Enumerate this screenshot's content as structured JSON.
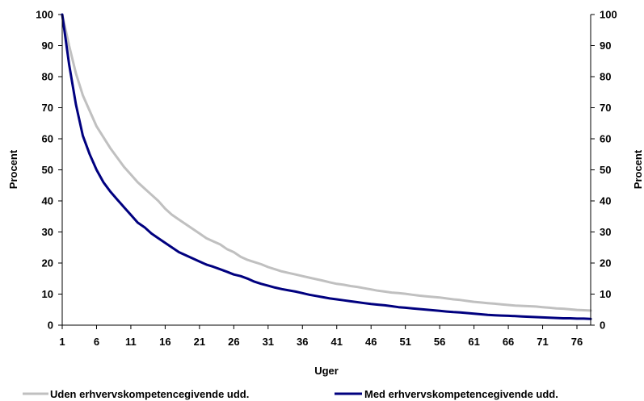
{
  "chart_data": {
    "type": "line",
    "xlabel": "Uger",
    "ylabel_left": "Procent",
    "ylabel_right": "Procent",
    "ylim": [
      0,
      100
    ],
    "xlim": [
      1,
      78
    ],
    "x_ticks": [
      1,
      6,
      11,
      16,
      21,
      26,
      31,
      36,
      41,
      46,
      51,
      56,
      61,
      66,
      71,
      76
    ],
    "y_ticks": [
      0,
      10,
      20,
      30,
      40,
      50,
      60,
      70,
      80,
      90,
      100
    ],
    "grid": false,
    "legend_position": "bottom",
    "series": [
      {
        "name": "Uden erhvervskompetencegivende udd.",
        "color": "#c0c0c0",
        "x": [
          1,
          2,
          3,
          4,
          5,
          6,
          7,
          8,
          9,
          10,
          11,
          12,
          13,
          14,
          15,
          16,
          17,
          18,
          19,
          20,
          21,
          22,
          23,
          24,
          25,
          26,
          27,
          28,
          29,
          30,
          31,
          32,
          33,
          34,
          35,
          36,
          37,
          38,
          39,
          40,
          41,
          42,
          43,
          44,
          45,
          46,
          47,
          48,
          49,
          50,
          51,
          52,
          53,
          54,
          55,
          56,
          57,
          58,
          59,
          60,
          61,
          62,
          63,
          64,
          65,
          66,
          67,
          68,
          69,
          70,
          71,
          72,
          73,
          74,
          75,
          76,
          77,
          78
        ],
        "values": [
          100,
          90,
          81,
          74,
          69,
          64,
          60.5,
          57,
          54,
          51,
          48.5,
          46,
          44,
          42,
          40,
          37.5,
          35.5,
          34,
          32.5,
          31,
          29.5,
          28,
          27,
          26,
          24.5,
          23.5,
          22,
          21,
          20.3,
          19.6,
          18.7,
          18,
          17.3,
          16.8,
          16.3,
          15.8,
          15.3,
          14.8,
          14.3,
          13.8,
          13.3,
          13,
          12.6,
          12.3,
          11.9,
          11.5,
          11.1,
          10.8,
          10.5,
          10.3,
          10.1,
          9.8,
          9.5,
          9.3,
          9.1,
          8.9,
          8.6,
          8.3,
          8.1,
          7.8,
          7.5,
          7.3,
          7.1,
          6.9,
          6.7,
          6.5,
          6.3,
          6.2,
          6.1,
          6,
          5.8,
          5.6,
          5.4,
          5.3,
          5.1,
          4.9,
          4.8,
          4.7
        ]
      },
      {
        "name": "Med erhvervskompetencegivende udd.",
        "color": "#00007f",
        "x": [
          1,
          2,
          3,
          4,
          5,
          6,
          7,
          8,
          9,
          10,
          11,
          12,
          13,
          14,
          15,
          16,
          17,
          18,
          19,
          20,
          21,
          22,
          23,
          24,
          25,
          26,
          27,
          28,
          29,
          30,
          31,
          32,
          33,
          34,
          35,
          36,
          37,
          38,
          39,
          40,
          41,
          42,
          43,
          44,
          45,
          46,
          47,
          48,
          49,
          50,
          51,
          52,
          53,
          54,
          55,
          56,
          57,
          58,
          59,
          60,
          61,
          62,
          63,
          64,
          65,
          66,
          67,
          68,
          69,
          70,
          71,
          72,
          73,
          74,
          75,
          76,
          77,
          78
        ],
        "values": [
          100,
          84,
          71,
          61,
          55,
          50,
          46,
          43,
          40.5,
          38,
          35.5,
          33,
          31.5,
          29.5,
          28,
          26.5,
          25,
          23.5,
          22.5,
          21.5,
          20.5,
          19.5,
          18.8,
          18,
          17.2,
          16.3,
          15.8,
          15,
          14,
          13.3,
          12.7,
          12.1,
          11.6,
          11.2,
          10.8,
          10.3,
          9.8,
          9.4,
          9,
          8.6,
          8.3,
          8,
          7.7,
          7.4,
          7.1,
          6.8,
          6.6,
          6.4,
          6.1,
          5.8,
          5.6,
          5.4,
          5.2,
          5,
          4.8,
          4.6,
          4.4,
          4.2,
          4.1,
          3.9,
          3.7,
          3.5,
          3.3,
          3.2,
          3.1,
          3,
          2.9,
          2.8,
          2.7,
          2.6,
          2.5,
          2.4,
          2.3,
          2.2,
          2.2,
          2.1,
          2.1,
          2
        ]
      }
    ]
  }
}
